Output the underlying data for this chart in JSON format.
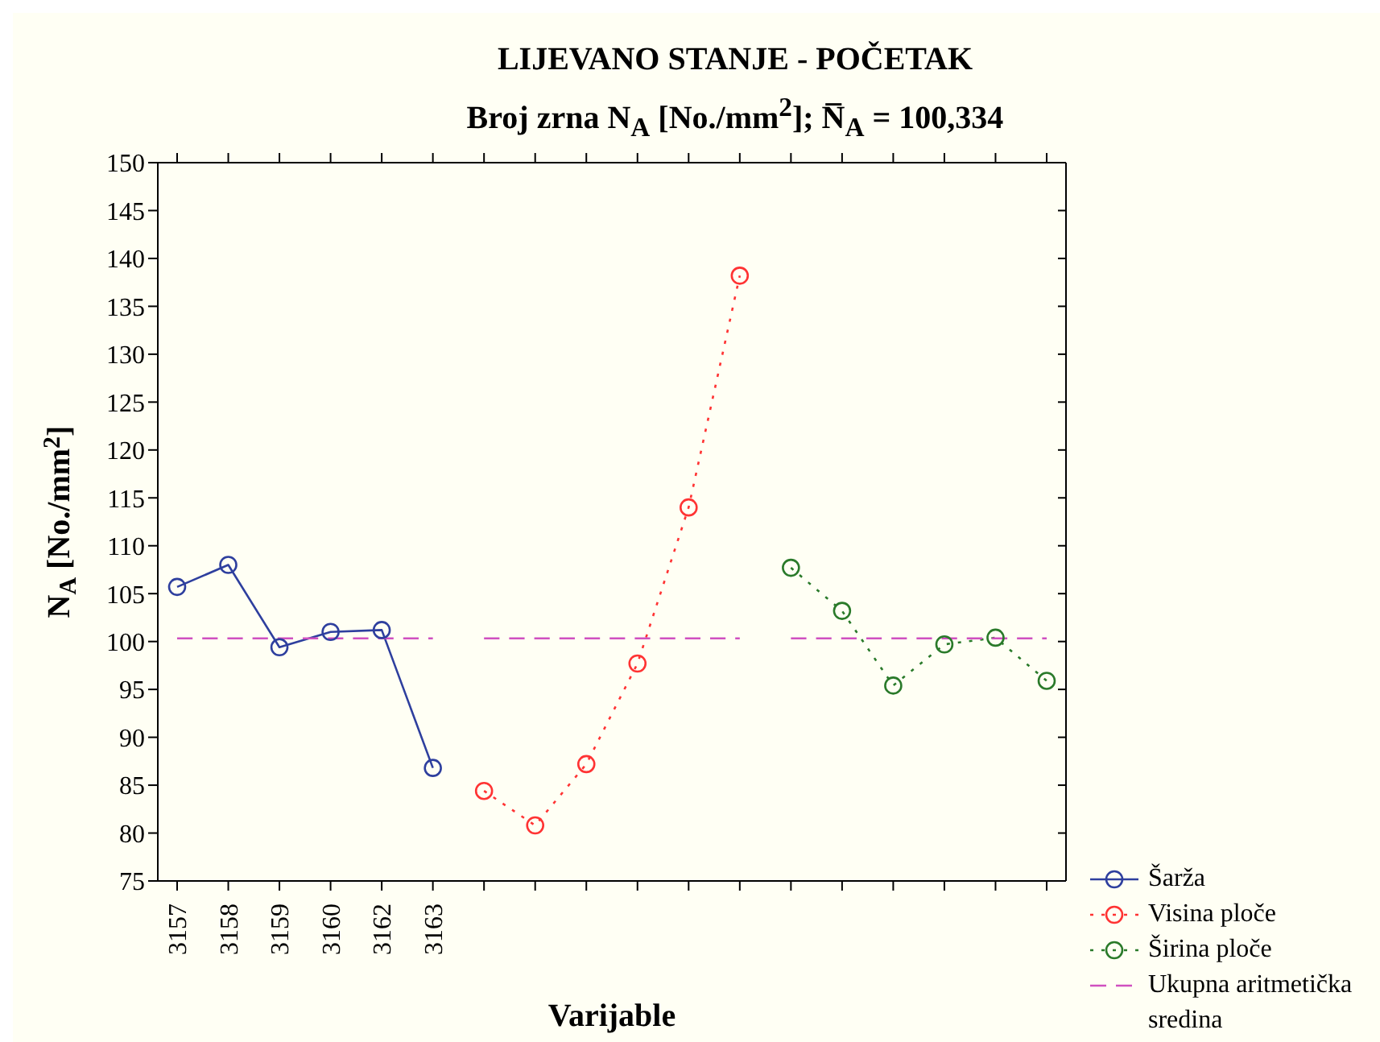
{
  "chart_data": {
    "type": "line",
    "title": "LIJEVANO STANJE - POČETAK",
    "subtitle": "Broj zrna N$_{A}$ [No./mm$^{2}$]; N̅$_{A}$ = 100,334",
    "xlabel": "Varijable",
    "ylabel": "N$_{A}$ [No./mm$^{2}$]",
    "categories": [
      "3157",
      "3158",
      "3159",
      "3160",
      "3162",
      "3163",
      null,
      null,
      null,
      null,
      null,
      null,
      null,
      null,
      null,
      null,
      null,
      null
    ],
    "ylim": [
      75,
      150
    ],
    "yticks": [
      75,
      80,
      85,
      90,
      95,
      100,
      105,
      110,
      115,
      120,
      125,
      130,
      135,
      140,
      145,
      150
    ],
    "legend": "bottom right",
    "marker": "circle",
    "series": [
      {
        "name": "Šarža",
        "color": "#2e3f9e",
        "line_style": "solid",
        "values": [
          105.7,
          108,
          99.4,
          101,
          101.2,
          86.8,
          null,
          null,
          null,
          null,
          null,
          null,
          null,
          null,
          null,
          null,
          null,
          null
        ]
      },
      {
        "name": "Visina ploče",
        "color": "#ff3333",
        "line_style": "dotted",
        "values": [
          null,
          null,
          null,
          null,
          null,
          null,
          84.4,
          80.8,
          87.2,
          97.7,
          114,
          138.2,
          null,
          null,
          null,
          null,
          null,
          null
        ]
      },
      {
        "name": "Širina ploče",
        "color": "#2a7a2a",
        "line_style": "dotted",
        "values": [
          null,
          null,
          null,
          null,
          null,
          null,
          null,
          null,
          null,
          null,
          null,
          null,
          107.7,
          103.2,
          95.4,
          99.7,
          100.4,
          95.9
        ]
      },
      {
        "name": "Ukupna aritmetička sredina",
        "color": "#d050c0",
        "line_style": "dashed",
        "marker": "none",
        "values": [
          100.334,
          100.334,
          100.334,
          100.334,
          100.334,
          100.334,
          null,
          null,
          null,
          null,
          null,
          null,
          null,
          null,
          null,
          null,
          null,
          null
        ]
      },
      {
        "color": "#d050c0",
        "line_style": "dashed",
        "marker": "none",
        "values": [
          null,
          null,
          null,
          null,
          null,
          null,
          100.334,
          100.334,
          100.334,
          100.334,
          100.334,
          100.334,
          null,
          null,
          null,
          null,
          null,
          null
        ]
      },
      {
        "color": "#d050c0",
        "line_style": "dashed",
        "marker": "none",
        "values": [
          null,
          null,
          null,
          null,
          null,
          null,
          null,
          null,
          null,
          null,
          null,
          null,
          100.334,
          100.334,
          100.334,
          100.334,
          100.334,
          100.334
        ]
      }
    ]
  }
}
